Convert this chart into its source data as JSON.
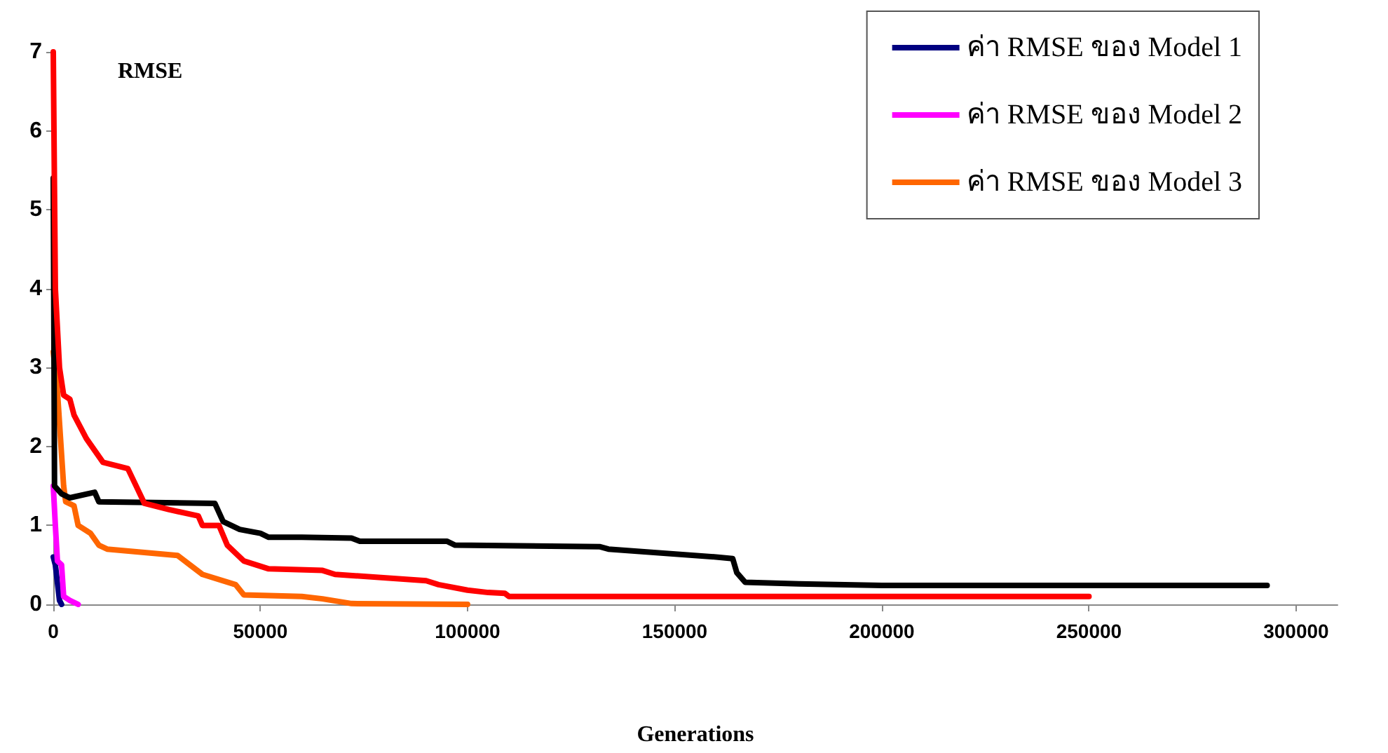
{
  "chart_data": {
    "type": "line",
    "xlabel": "Generations",
    "ylabel": "RMSE",
    "xlim": [
      0,
      310000
    ],
    "xticks": [
      0,
      50000,
      100000,
      150000,
      200000,
      250000,
      300000
    ],
    "ylim": [
      0,
      7
    ],
    "yticks": [
      0,
      1,
      2,
      3,
      4,
      5,
      6,
      7
    ],
    "grid": false,
    "legend": "top right",
    "marker": "none",
    "line_style": "solid",
    "series": [
      {
        "name": "ค่า RMSE ของ Model 1",
        "color": "#000080",
        "x": [
          0,
          500,
          1500,
          2000
        ],
        "values": [
          0.6,
          0.5,
          0.05,
          0
        ]
      },
      {
        "name": "ค่า RMSE ของ Model 2",
        "color": "#ff00ff",
        "x": [
          0,
          500,
          1000,
          2000,
          2500,
          4000,
          6000
        ],
        "values": [
          1.5,
          1.0,
          0.55,
          0.5,
          0.1,
          0.05,
          0
        ]
      },
      {
        "name": "ค่า RMSE ของ Model 3",
        "color": "#ff6600",
        "x": [
          0,
          1000,
          2500,
          3000,
          5000,
          6000,
          9000,
          11000,
          13000,
          30000,
          33000,
          36000,
          44000,
          46000,
          60000,
          65000,
          72000,
          100000
        ],
        "values": [
          3.2,
          2.7,
          1.5,
          1.3,
          1.25,
          1.0,
          0.9,
          0.75,
          0.7,
          0.62,
          0.5,
          0.38,
          0.25,
          0.12,
          0.1,
          0.07,
          0.01,
          0
        ]
      },
      {
        "color": "#000000",
        "x": [
          0,
          300,
          2000,
          4000,
          10000,
          11000,
          39000,
          41000,
          45000,
          50000,
          52000,
          60000,
          72000,
          74000,
          95000,
          97000,
          132000,
          134000,
          160000,
          164000,
          165000,
          167000,
          180000,
          200000,
          293000
        ],
        "values": [
          5.4,
          1.5,
          1.4,
          1.35,
          1.42,
          1.3,
          1.28,
          1.05,
          0.95,
          0.9,
          0.85,
          0.85,
          0.84,
          0.8,
          0.8,
          0.75,
          0.73,
          0.7,
          0.6,
          0.58,
          0.4,
          0.28,
          0.26,
          0.24,
          0.24
        ]
      },
      {
        "color": "#ff0000",
        "x": [
          0,
          500,
          1500,
          2500,
          4000,
          5000,
          8000,
          12000,
          18000,
          20000,
          22000,
          28000,
          35000,
          36000,
          40000,
          42000,
          46000,
          52000,
          65000,
          68000,
          90000,
          93000,
          100000,
          105000,
          109000,
          110000,
          250000
        ],
        "values": [
          7,
          4,
          3.0,
          2.65,
          2.6,
          2.4,
          2.1,
          1.8,
          1.72,
          1.5,
          1.28,
          1.2,
          1.12,
          1.0,
          1.0,
          0.75,
          0.55,
          0.45,
          0.43,
          0.38,
          0.3,
          0.25,
          0.18,
          0.15,
          0.14,
          0.1,
          0.1
        ]
      }
    ]
  }
}
